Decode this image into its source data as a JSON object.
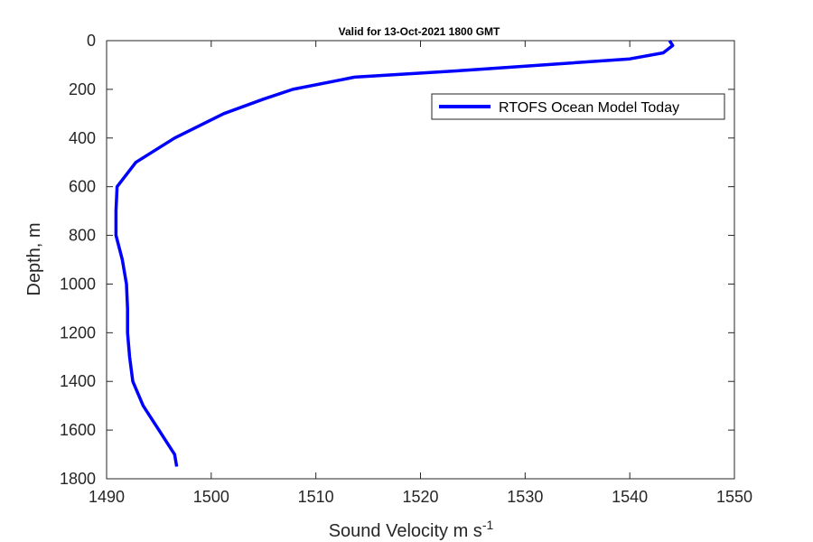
{
  "chart_data": {
    "type": "line",
    "title": "Valid for 13-Oct-2021 1800 GMT",
    "xlabel": "Sound Velocity m s",
    "xlabel_superscript": "-1",
    "ylabel": "Depth, m",
    "xlim": [
      1490,
      1550
    ],
    "ylim": [
      0,
      1800
    ],
    "y_reversed": true,
    "x_ticks": [
      "1490",
      "1500",
      "1510",
      "1520",
      "1530",
      "1540",
      "1550"
    ],
    "y_ticks": [
      "0",
      "200",
      "400",
      "600",
      "800",
      "1000",
      "1200",
      "1400",
      "1600",
      "1800"
    ],
    "grid": false,
    "legend_position": "top-right",
    "series": [
      {
        "name": "RTOFS Ocean Model Today",
        "color": "#0000ff",
        "points": [
          [
            1543.8,
            0
          ],
          [
            1544.1,
            20
          ],
          [
            1543.2,
            50
          ],
          [
            1540.0,
            75
          ],
          [
            1525.0,
            120
          ],
          [
            1513.7,
            150
          ],
          [
            1507.8,
            200
          ],
          [
            1505.0,
            240
          ],
          [
            1501.2,
            300
          ],
          [
            1496.5,
            400
          ],
          [
            1492.8,
            500
          ],
          [
            1491.0,
            600
          ],
          [
            1490.9,
            700
          ],
          [
            1490.9,
            800
          ],
          [
            1491.5,
            900
          ],
          [
            1491.9,
            1000
          ],
          [
            1492.0,
            1100
          ],
          [
            1492.0,
            1200
          ],
          [
            1492.2,
            1300
          ],
          [
            1492.5,
            1400
          ],
          [
            1493.5,
            1500
          ],
          [
            1495.0,
            1600
          ],
          [
            1496.5,
            1700
          ],
          [
            1496.7,
            1750
          ]
        ]
      }
    ]
  }
}
